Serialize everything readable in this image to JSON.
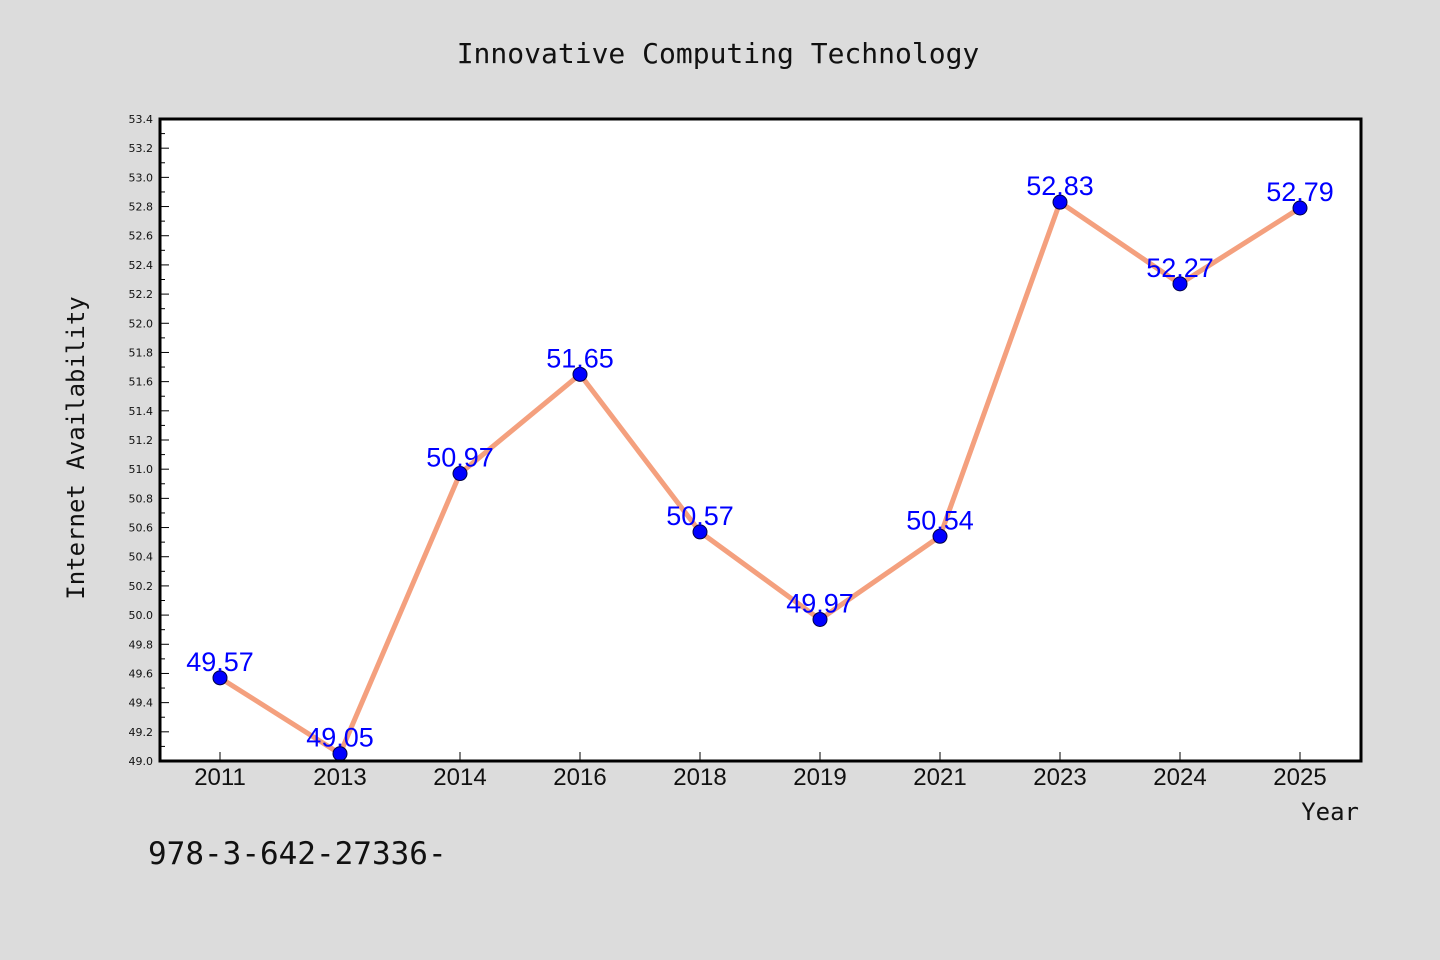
{
  "chart_data": {
    "type": "line",
    "title": "Innovative Computing Technology",
    "xlabel": "Year",
    "ylabel": "Internet Availability",
    "categories": [
      "2011",
      "2013",
      "2014",
      "2016",
      "2018",
      "2019",
      "2021",
      "2023",
      "2024",
      "2025"
    ],
    "series": [
      {
        "values": [
          49.57,
          49.05,
          50.97,
          51.65,
          50.57,
          49.97,
          50.54,
          52.83,
          52.27,
          52.79
        ],
        "line_color": "#f4a07e",
        "marker_color": "#0000ff"
      }
    ],
    "data_labels": [
      "49.57",
      "49.05",
      "50.97",
      "51.65",
      "50.57",
      "49.97",
      "50.54",
      "52.83",
      "52.27",
      "52.79"
    ],
    "ylim": [
      49.0,
      53.4
    ],
    "yticks": [
      "49.0",
      "49.2",
      "49.4",
      "49.6",
      "49.8",
      "50.0",
      "50.2",
      "50.4",
      "50.6",
      "50.8",
      "51.0",
      "51.2",
      "51.4",
      "51.6",
      "51.8",
      "52.0",
      "52.2",
      "52.4",
      "52.6",
      "52.8",
      "53.0",
      "53.2",
      "53.4"
    ],
    "grid": false,
    "legend": "none"
  },
  "footer": {
    "text": "978-3-642-27336-"
  },
  "colors": {
    "background": "#dcdcdc",
    "plot_background": "#ffffff",
    "line": "#f4a07e",
    "marker": "#0000ff",
    "data_label": "#0000ff"
  }
}
